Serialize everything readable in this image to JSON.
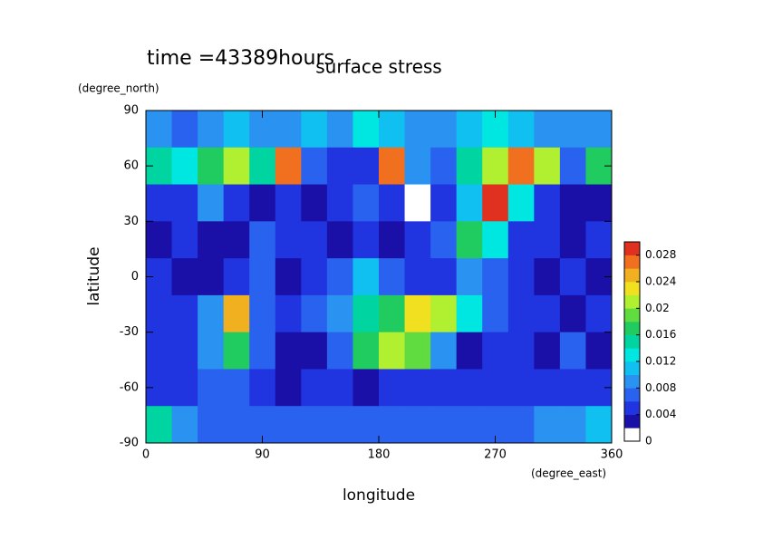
{
  "chart_data": {
    "type": "contour",
    "title": "surface stress",
    "subtitle": "time =43389hours",
    "ylabel": "latitude",
    "yunit": "(degree_north)",
    "xlabel": "longitude",
    "xunit": "(degree_east)",
    "xlim": [
      0,
      360
    ],
    "xticks": [
      0,
      90,
      180,
      270,
      360
    ],
    "ylim": [
      -90,
      90
    ],
    "yticks": [
      -90,
      -60,
      -30,
      0,
      30,
      60,
      90
    ],
    "x": [
      10,
      30,
      50,
      70,
      90,
      110,
      130,
      150,
      170,
      190,
      210,
      230,
      250,
      270,
      290,
      310,
      330,
      350
    ],
    "y": [
      80,
      60,
      40,
      20,
      0,
      -20,
      -40,
      -60,
      -80
    ],
    "z": [
      [
        0.008,
        0.007,
        0.009,
        0.01,
        0.009,
        0.008,
        0.01,
        0.009,
        0.012,
        0.01,
        0.008,
        0.009,
        0.01,
        0.012,
        0.01,
        0.009,
        0.008,
        0.008
      ],
      [
        0.014,
        0.012,
        0.016,
        0.02,
        0.015,
        0.026,
        0.006,
        0.005,
        0.004,
        0.026,
        0.008,
        0.006,
        0.014,
        0.02,
        0.026,
        0.02,
        0.006,
        0.016
      ],
      [
        0.004,
        0.004,
        0.008,
        0.004,
        0.002,
        0.004,
        0.003,
        0.004,
        0.006,
        0.004,
        0.001,
        0.004,
        0.01,
        0.03,
        0.012,
        0.004,
        0.002,
        0.002
      ],
      [
        0.003,
        0.004,
        0.003,
        0.002,
        0.006,
        0.004,
        0.004,
        0.002,
        0.004,
        0.002,
        0.004,
        0.006,
        0.016,
        0.012,
        0.005,
        0.004,
        0.003,
        0.004
      ],
      [
        0.004,
        0.003,
        0.003,
        0.004,
        0.006,
        0.002,
        0.004,
        0.006,
        0.01,
        0.006,
        0.004,
        0.004,
        0.008,
        0.006,
        0.004,
        0.003,
        0.004,
        0.002
      ],
      [
        0.005,
        0.004,
        0.008,
        0.024,
        0.006,
        0.004,
        0.006,
        0.008,
        0.014,
        0.016,
        0.022,
        0.02,
        0.012,
        0.006,
        0.004,
        0.004,
        0.003,
        0.004
      ],
      [
        0.004,
        0.004,
        0.008,
        0.016,
        0.006,
        0.003,
        0.002,
        0.006,
        0.016,
        0.02,
        0.018,
        0.008,
        0.003,
        0.004,
        0.004,
        0.003,
        0.006,
        0.003
      ],
      [
        0.005,
        0.004,
        0.006,
        0.007,
        0.004,
        0.003,
        0.004,
        0.005,
        0.003,
        0.004,
        0.005,
        0.004,
        0.005,
        0.004,
        0.004,
        0.004,
        0.005,
        0.004
      ],
      [
        0.014,
        0.008,
        0.006,
        0.006,
        0.006,
        0.007,
        0.006,
        0.007,
        0.006,
        0.006,
        0.006,
        0.007,
        0.006,
        0.007,
        0.006,
        0.008,
        0.008,
        0.01
      ]
    ],
    "levels": [
      0,
      0.002,
      0.004,
      0.006,
      0.008,
      0.01,
      0.012,
      0.014,
      0.016,
      0.018,
      0.02,
      0.022,
      0.024,
      0.026,
      0.028,
      0.03
    ],
    "colors": [
      "#ffffff",
      "#1a10a8",
      "#2034e0",
      "#2a62f0",
      "#2a92f0",
      "#10c0f0",
      "#00e6e0",
      "#00d4a0",
      "#20cc60",
      "#60dc40",
      "#b0f030",
      "#f0e020",
      "#f0b020",
      "#f07020",
      "#e03020"
    ],
    "cbar_ticks": [
      0,
      0.004,
      0.008,
      0.012,
      0.016,
      0.02,
      0.024,
      0.028
    ]
  }
}
